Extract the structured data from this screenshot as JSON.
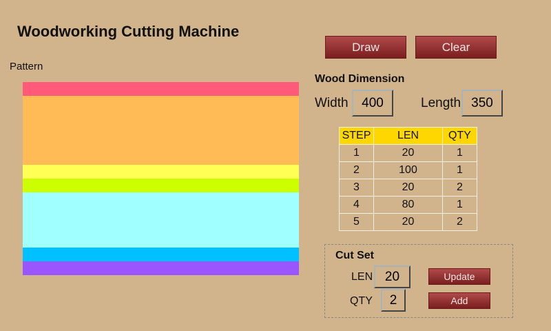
{
  "title": "Woodworking Cutting Machine",
  "pattern_label": "Pattern",
  "pattern": [
    {
      "len": 20,
      "color": "#ff5a7a"
    },
    {
      "len": 100,
      "color": "#ffbb55"
    },
    {
      "len": 20,
      "color": "#ffff55"
    },
    {
      "len": 20,
      "color": "#ccff00"
    },
    {
      "len": 80,
      "color": "#a0ffff"
    },
    {
      "len": 20,
      "color": "#00c0ff"
    },
    {
      "len": 20,
      "color": "#9a55ff"
    }
  ],
  "buttons": {
    "draw": "Draw",
    "clear": "Clear",
    "update": "Update",
    "add": "Add"
  },
  "wood": {
    "heading": "Wood Dimension",
    "width_label": "Width",
    "width": "400",
    "length_label": "Length",
    "length": "350"
  },
  "table": {
    "headers": [
      "STEP",
      "LEN",
      "QTY"
    ],
    "rows": [
      [
        "1",
        "20",
        "1"
      ],
      [
        "2",
        "100",
        "1"
      ],
      [
        "3",
        "20",
        "2"
      ],
      [
        "4",
        "80",
        "1"
      ],
      [
        "5",
        "20",
        "2"
      ]
    ]
  },
  "cutset": {
    "heading": "Cut Set",
    "len_label": "LEN",
    "len": "20",
    "qty_label": "QTY",
    "qty": "2"
  }
}
